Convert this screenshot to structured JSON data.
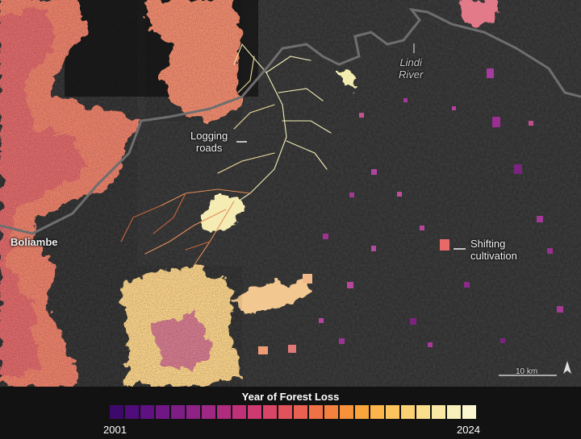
{
  "labels": {
    "river": "Lindi\nRiver",
    "logging": "Logging\nroads",
    "shifting": "Shifting\ncultivation",
    "town": "Boliambe"
  },
  "scale_bar": {
    "text": "10 km"
  },
  "north_icon": "north-arrow-icon",
  "legend": {
    "title": "Year of Forest Loss",
    "start": "2001",
    "end": "2024",
    "colors": [
      "#3d0a6b",
      "#4f0c7a",
      "#5f1181",
      "#6f1784",
      "#7f1d86",
      "#8f2286",
      "#9f2784",
      "#af2c7f",
      "#bf3279",
      "#cd3a71",
      "#d94567",
      "#e3525c",
      "#eb6151",
      "#f17147",
      "#f5813f",
      "#f8923a",
      "#faa43d",
      "#fbb54a",
      "#fbc45c",
      "#fad273",
      "#f9de8c",
      "#f8e8a4",
      "#f8f0bb",
      "#fbf6cd"
    ]
  },
  "colors": {
    "background_forest": "#2b2b2b",
    "river": "#6f6f6f"
  }
}
